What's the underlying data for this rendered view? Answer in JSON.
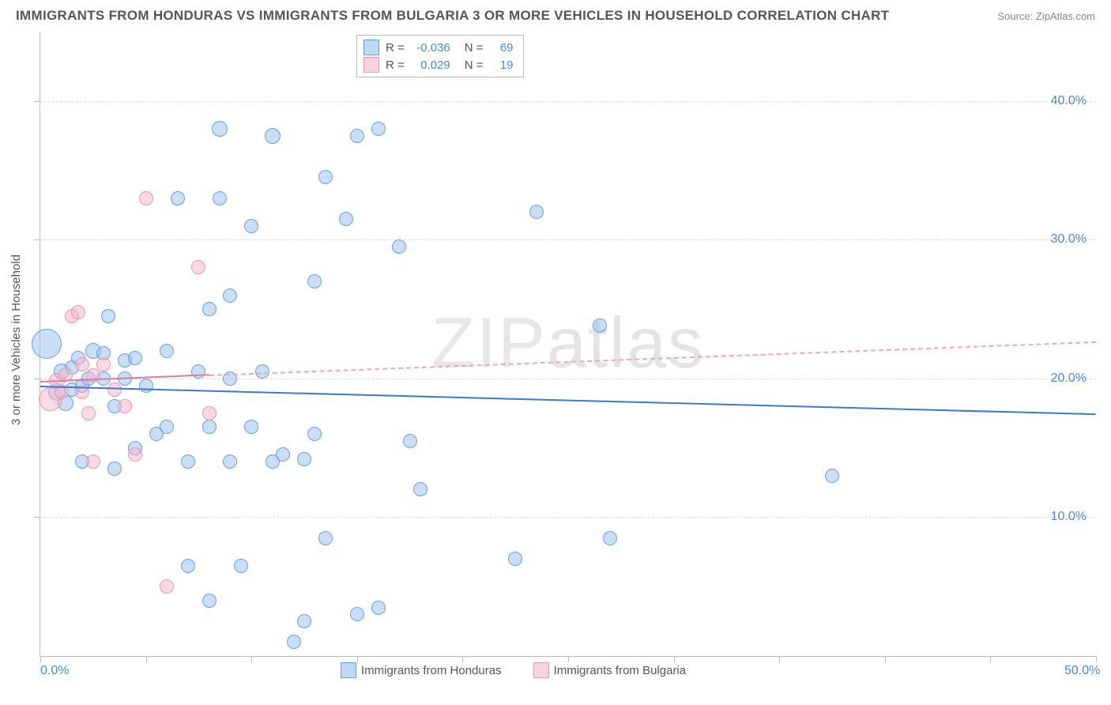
{
  "title": "IMMIGRANTS FROM HONDURAS VS IMMIGRANTS FROM BULGARIA 3 OR MORE VEHICLES IN HOUSEHOLD CORRELATION CHART",
  "source": "Source: ZipAtlas.com",
  "y_axis_label": "3 or more Vehicles in Household",
  "watermark": "ZIPatlas",
  "chart": {
    "type": "scatter",
    "xlim": [
      0,
      50
    ],
    "ylim": [
      0,
      45
    ],
    "x_ticks": [
      0,
      5,
      10,
      15,
      20,
      25,
      30,
      35,
      40,
      45,
      50
    ],
    "y_grid_lines": [
      10,
      20,
      30,
      40
    ],
    "x_tick_labels": {
      "0": "0.0%",
      "50": "50.0%"
    },
    "y_tick_labels": {
      "10": "10.0%",
      "20": "20.0%",
      "30": "30.0%",
      "40": "40.0%"
    },
    "background_color": "#ffffff",
    "grid_color": "#d8d8d8",
    "axis_color": "#bbbbbb",
    "label_color": "#4a86e8",
    "point_radius_default": 9,
    "series": [
      {
        "name": "Immigrants from Honduras",
        "color_fill": "rgba(150,190,235,0.5)",
        "color_stroke": "#6a9fe0",
        "class": "blue",
        "R": "-0.036",
        "N": "69",
        "trend": {
          "x1": 0,
          "y1": 19.5,
          "x2": 50,
          "y2": 17.5,
          "color": "#3b78d8",
          "width": 2,
          "dash": false
        },
        "points": [
          {
            "x": 0.3,
            "y": 22.5,
            "r": 18
          },
          {
            "x": 0.8,
            "y": 19.0,
            "r": 10
          },
          {
            "x": 1.0,
            "y": 20.5,
            "r": 9
          },
          {
            "x": 1.2,
            "y": 18.2,
            "r": 9
          },
          {
            "x": 1.5,
            "y": 20.8,
            "r": 8
          },
          {
            "x": 1.5,
            "y": 19.2,
            "r": 8
          },
          {
            "x": 1.8,
            "y": 21.5,
            "r": 8
          },
          {
            "x": 2.0,
            "y": 19.5,
            "r": 8
          },
          {
            "x": 2.0,
            "y": 14.0,
            "r": 8
          },
          {
            "x": 2.3,
            "y": 20.0,
            "r": 8
          },
          {
            "x": 2.5,
            "y": 22.0,
            "r": 9
          },
          {
            "x": 3.0,
            "y": 21.8,
            "r": 8
          },
          {
            "x": 3.0,
            "y": 20.0,
            "r": 8
          },
          {
            "x": 3.2,
            "y": 24.5,
            "r": 8
          },
          {
            "x": 3.5,
            "y": 18.0,
            "r": 8
          },
          {
            "x": 3.5,
            "y": 13.5,
            "r": 8
          },
          {
            "x": 4.0,
            "y": 21.3,
            "r": 8
          },
          {
            "x": 4.0,
            "y": 20.0,
            "r": 8
          },
          {
            "x": 4.5,
            "y": 21.5,
            "r": 8
          },
          {
            "x": 4.5,
            "y": 15.0,
            "r": 8
          },
          {
            "x": 5.0,
            "y": 19.5,
            "r": 8
          },
          {
            "x": 5.5,
            "y": 16.0,
            "r": 8
          },
          {
            "x": 6.0,
            "y": 22.0,
            "r": 8
          },
          {
            "x": 6.0,
            "y": 16.5,
            "r": 8
          },
          {
            "x": 6.5,
            "y": 33.0,
            "r": 8
          },
          {
            "x": 7.0,
            "y": 14.0,
            "r": 8
          },
          {
            "x": 7.0,
            "y": 6.5,
            "r": 8
          },
          {
            "x": 7.5,
            "y": 20.5,
            "r": 8
          },
          {
            "x": 8.0,
            "y": 25.0,
            "r": 8
          },
          {
            "x": 8.0,
            "y": 16.5,
            "r": 8
          },
          {
            "x": 8.0,
            "y": 4.0,
            "r": 8
          },
          {
            "x": 8.5,
            "y": 38.0,
            "r": 9
          },
          {
            "x": 8.5,
            "y": 33.0,
            "r": 8
          },
          {
            "x": 9.0,
            "y": 26.0,
            "r": 8
          },
          {
            "x": 9.0,
            "y": 20.0,
            "r": 8
          },
          {
            "x": 9.0,
            "y": 14.0,
            "r": 8
          },
          {
            "x": 9.5,
            "y": 6.5,
            "r": 8
          },
          {
            "x": 10.0,
            "y": 31.0,
            "r": 8
          },
          {
            "x": 10.0,
            "y": 16.5,
            "r": 8
          },
          {
            "x": 10.5,
            "y": 20.5,
            "r": 8
          },
          {
            "x": 11.0,
            "y": 37.5,
            "r": 9
          },
          {
            "x": 11.0,
            "y": 14.0,
            "r": 8
          },
          {
            "x": 11.5,
            "y": 14.5,
            "r": 8
          },
          {
            "x": 12.0,
            "y": 1.0,
            "r": 8
          },
          {
            "x": 12.5,
            "y": 14.2,
            "r": 8
          },
          {
            "x": 12.5,
            "y": 2.5,
            "r": 8
          },
          {
            "x": 13.0,
            "y": 27.0,
            "r": 8
          },
          {
            "x": 13.0,
            "y": 16.0,
            "r": 8
          },
          {
            "x": 13.5,
            "y": 34.5,
            "r": 8
          },
          {
            "x": 13.5,
            "y": 8.5,
            "r": 8
          },
          {
            "x": 14.5,
            "y": 31.5,
            "r": 8
          },
          {
            "x": 15.0,
            "y": 37.5,
            "r": 8
          },
          {
            "x": 15.0,
            "y": 3.0,
            "r": 8
          },
          {
            "x": 16.0,
            "y": 38.0,
            "r": 8
          },
          {
            "x": 16.0,
            "y": 3.5,
            "r": 8
          },
          {
            "x": 17.0,
            "y": 29.5,
            "r": 8
          },
          {
            "x": 17.5,
            "y": 15.5,
            "r": 8
          },
          {
            "x": 18.0,
            "y": 12.0,
            "r": 8
          },
          {
            "x": 22.5,
            "y": 7.0,
            "r": 8
          },
          {
            "x": 23.5,
            "y": 32.0,
            "r": 8
          },
          {
            "x": 26.5,
            "y": 23.8,
            "r": 8
          },
          {
            "x": 27.0,
            "y": 8.5,
            "r": 8
          },
          {
            "x": 37.5,
            "y": 13.0,
            "r": 8
          }
        ]
      },
      {
        "name": "Immigrants from Bulgaria",
        "color_fill": "rgba(248,180,200,0.5)",
        "color_stroke": "#e898b0",
        "class": "pink",
        "R": "0.029",
        "N": "19",
        "trend_solid": {
          "x1": 0,
          "y1": 19.8,
          "x2": 8,
          "y2": 20.3,
          "color": "#e27a9a",
          "width": 2
        },
        "trend_dash": {
          "x1": 8,
          "y1": 20.3,
          "x2": 50,
          "y2": 22.7,
          "color": "#e8a8bc",
          "width": 2
        },
        "points": [
          {
            "x": 0.5,
            "y": 18.5,
            "r": 14
          },
          {
            "x": 0.8,
            "y": 19.8,
            "r": 9
          },
          {
            "x": 1.0,
            "y": 19.0,
            "r": 8
          },
          {
            "x": 1.2,
            "y": 20.3,
            "r": 8
          },
          {
            "x": 1.5,
            "y": 24.5,
            "r": 8
          },
          {
            "x": 1.8,
            "y": 24.8,
            "r": 8
          },
          {
            "x": 2.0,
            "y": 21.0,
            "r": 8
          },
          {
            "x": 2.0,
            "y": 19.0,
            "r": 8
          },
          {
            "x": 2.3,
            "y": 17.5,
            "r": 8
          },
          {
            "x": 2.5,
            "y": 20.2,
            "r": 8
          },
          {
            "x": 2.5,
            "y": 14.0,
            "r": 8
          },
          {
            "x": 3.0,
            "y": 21.0,
            "r": 8
          },
          {
            "x": 3.5,
            "y": 19.2,
            "r": 8
          },
          {
            "x": 4.0,
            "y": 18.0,
            "r": 8
          },
          {
            "x": 4.5,
            "y": 14.5,
            "r": 8
          },
          {
            "x": 5.0,
            "y": 33.0,
            "r": 8
          },
          {
            "x": 6.0,
            "y": 5.0,
            "r": 8
          },
          {
            "x": 7.5,
            "y": 28.0,
            "r": 8
          },
          {
            "x": 8.0,
            "y": 17.5,
            "r": 8
          }
        ]
      }
    ]
  },
  "stat_box": {
    "rows": [
      {
        "swatch": "blue",
        "R_label": "R =",
        "R": "-0.036",
        "N_label": "N =",
        "N": "69"
      },
      {
        "swatch": "pink",
        "R_label": "R =",
        "R": "0.029",
        "N_label": "N =",
        "N": "19"
      }
    ]
  },
  "bottom_legend": [
    {
      "swatch": "blue",
      "label": "Immigrants from Honduras"
    },
    {
      "swatch": "pink",
      "label": "Immigrants from Bulgaria"
    }
  ]
}
